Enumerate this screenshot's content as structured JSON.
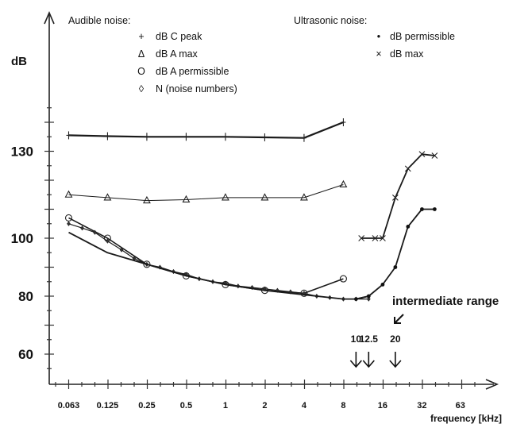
{
  "chart_data": {
    "type": "line",
    "ylabel": "dB",
    "xlabel": "frequency [kHz]",
    "x_ticks": [
      "0.063",
      "0.125",
      "0.25",
      "0.5",
      "1",
      "2",
      "4",
      "8",
      "16",
      "32",
      "63"
    ],
    "y_ticks": [
      60,
      80,
      100,
      130
    ],
    "xscale": "log2",
    "xlim": [
      0.045,
      120
    ],
    "ylim": [
      50,
      140
    ],
    "grid": false,
    "legend": {
      "audible_title": "Audible noise:",
      "ultrasonic_title": "Ultrasonic noise:",
      "audible_items": [
        {
          "symbol": "+",
          "label": "dB C  peak"
        },
        {
          "symbol": "Δ",
          "label": "dB A max"
        },
        {
          "symbol": "O",
          "label": "dB A permissible"
        },
        {
          "symbol": "◊",
          "label": "N  (noise numbers)"
        }
      ],
      "ultrasonic_items": [
        {
          "symbol": "•",
          "label": "dB permissible"
        },
        {
          "symbol": "×",
          "label": "dB max"
        }
      ]
    },
    "series": [
      {
        "name": "dB C  peak",
        "marker": "plus",
        "x": [
          0.063,
          0.125,
          0.25,
          0.5,
          1,
          2,
          4,
          8
        ],
        "y": [
          135.5,
          135.2,
          135.0,
          135.0,
          135.0,
          134.8,
          134.6,
          140
        ]
      },
      {
        "name": "dB A max",
        "marker": "triangle",
        "x": [
          0.063,
          0.125,
          0.25,
          0.5,
          1,
          2,
          4,
          8
        ],
        "y": [
          115,
          114,
          113,
          113.3,
          114,
          114,
          114,
          118.5
        ]
      },
      {
        "name": "dB A permissible",
        "marker": "circle",
        "x": [
          0.063,
          0.125,
          0.25,
          0.5,
          1,
          2,
          4,
          8
        ],
        "y": [
          107,
          100,
          91,
          87,
          84,
          82,
          81,
          86
        ]
      },
      {
        "name": "N  (noise numbers)",
        "marker": "diamond",
        "x": [
          0.063,
          0.08,
          0.1,
          0.125,
          0.16,
          0.2,
          0.25,
          0.315,
          0.4,
          0.5,
          0.63,
          0.8,
          1,
          1.25,
          1.6,
          2,
          2.5,
          3.15,
          4,
          5,
          6.3,
          8,
          10,
          12.5
        ],
        "y": [
          105,
          103.5,
          102,
          99,
          96,
          93,
          91,
          90,
          88.5,
          87.5,
          86,
          85,
          84.5,
          83.5,
          83,
          82.5,
          82,
          81.5,
          81,
          80,
          79.5,
          79,
          79,
          79
        ]
      },
      {
        "name": "",
        "marker": "none",
        "x": [
          0.063,
          0.125,
          0.25,
          0.5,
          1,
          2,
          4,
          8,
          10,
          12.5
        ],
        "y": [
          102,
          95,
          91,
          87,
          84,
          82,
          80.5,
          79,
          79,
          80
        ]
      },
      {
        "name": "dB permissible",
        "marker": "dot",
        "x": [
          10,
          12.5,
          16,
          20,
          25,
          32,
          40
        ],
        "y": [
          79,
          80,
          84,
          90,
          104,
          110,
          110
        ]
      },
      {
        "name": "dB max",
        "marker": "cross",
        "x": [
          11,
          14,
          16,
          20,
          25,
          32,
          40
        ],
        "y": [
          100,
          100,
          100,
          114,
          124,
          129,
          128.5
        ]
      }
    ],
    "annotations": {
      "range_label": "intermediate range",
      "arrow_labels": [
        "10",
        "12.5",
        "20"
      ]
    }
  }
}
